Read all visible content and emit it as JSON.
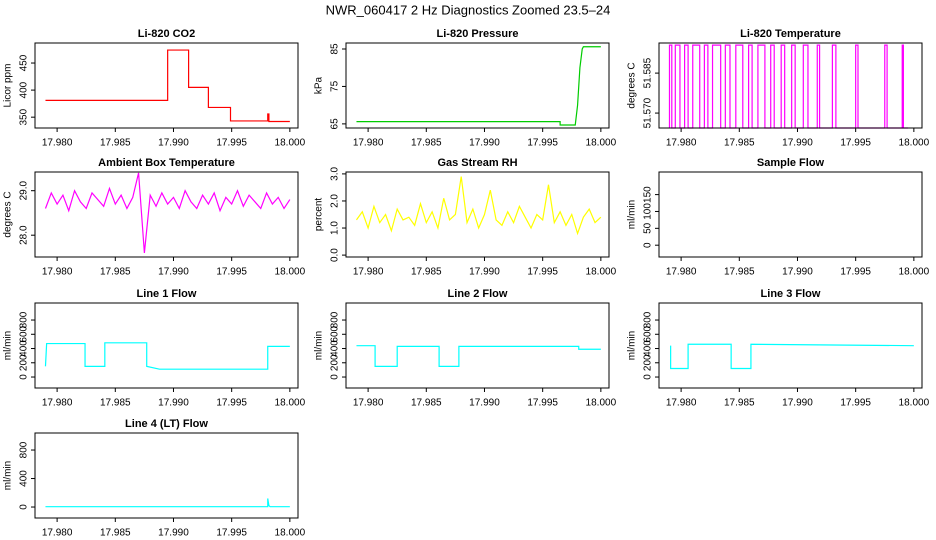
{
  "title": "NWR_060417  2 Hz Diagnostics Zoomed 23.5–24",
  "chart_data": [
    {
      "type": "line",
      "title": "Li-820 CO2",
      "ylabel": "Licor ppm",
      "color": "#ff0000",
      "xlim": [
        17.9781,
        18.0007
      ],
      "xticks": [
        {
          "value": 17.98,
          "label": "17.980"
        },
        {
          "value": 17.985,
          "label": "17.985"
        },
        {
          "value": 17.99,
          "label": "17.990"
        },
        {
          "value": 17.995,
          "label": "17.995"
        },
        {
          "value": 18.0,
          "label": "18.000"
        }
      ],
      "ylim": [
        330,
        487
      ],
      "yticks": [
        350,
        400,
        450
      ],
      "x": [
        17.979,
        17.9895,
        17.9895,
        17.9913,
        17.9913,
        17.993,
        17.993,
        17.9949,
        17.9949,
        17.9981,
        17.9981,
        17.9982,
        17.9982,
        18.0
      ],
      "values": [
        381,
        381,
        474,
        474,
        405,
        405,
        368,
        368,
        343,
        343,
        356,
        356,
        342,
        342
      ]
    },
    {
      "type": "line",
      "title": "Li-820 Pressure",
      "ylabel": "kPa",
      "color": "#00cc00",
      "xlim": [
        17.9781,
        18.0007
      ],
      "xticks": [
        {
          "value": 17.98,
          "label": "17.980"
        },
        {
          "value": 17.985,
          "label": "17.985"
        },
        {
          "value": 17.99,
          "label": "17.990"
        },
        {
          "value": 17.995,
          "label": "17.995"
        },
        {
          "value": 18.0,
          "label": "18.000"
        }
      ],
      "ylim": [
        63.9,
        86.6
      ],
      "yticks": [
        65,
        75,
        85
      ],
      "x": [
        17.979,
        17.9965,
        17.9965,
        17.9978,
        17.998,
        17.9982,
        17.9984,
        17.9985,
        18.0
      ],
      "values": [
        65.6,
        65.6,
        64.7,
        64.7,
        70,
        80,
        85,
        85.6,
        85.6
      ]
    },
    {
      "type": "line",
      "title": "Li-820 Temperature",
      "ylabel": "degrees C",
      "color": "#ff00ff",
      "xlim": [
        17.9781,
        18.0007
      ],
      "xticks": [
        {
          "value": 17.98,
          "label": "17.980"
        },
        {
          "value": 17.985,
          "label": "17.985"
        },
        {
          "value": 17.99,
          "label": "17.990"
        },
        {
          "value": 17.995,
          "label": "17.995"
        },
        {
          "value": 18.0,
          "label": "18.000"
        }
      ],
      "ylim": [
        51.5644,
        51.5963
      ],
      "yticks": [
        {
          "value": 51.57,
          "label": "51.570"
        },
        {
          "value": 51.585,
          "label": "51.585"
        }
      ],
      "x": [
        17.979,
        17.979,
        17.9792,
        17.9792,
        17.9795,
        17.9795,
        17.9799,
        17.9799,
        17.9803,
        17.9803,
        17.9806,
        17.9806,
        17.981,
        17.981,
        17.9816,
        17.9816,
        17.982,
        17.982,
        17.9823,
        17.9823,
        17.9827,
        17.9827,
        17.9834,
        17.9834,
        17.9838,
        17.9838,
        17.9842,
        17.9842,
        17.9847,
        17.9847,
        17.9853,
        17.9853,
        17.9858,
        17.9858,
        17.9861,
        17.9861,
        17.9866,
        17.9866,
        17.9872,
        17.9872,
        17.9877,
        17.9877,
        17.988,
        17.988,
        17.9886,
        17.9886,
        17.9889,
        17.9889,
        17.9895,
        17.9895,
        17.9898,
        17.9898,
        17.9905,
        17.9905,
        17.9909,
        17.9909,
        17.9917,
        17.9917,
        17.9919,
        17.9919,
        17.993,
        17.993,
        17.9933,
        17.9933,
        17.995,
        17.995,
        17.9952,
        17.9952,
        17.9975,
        17.9975,
        17.9977,
        17.9977,
        17.999,
        17.999,
        17.9991,
        17.9991,
        17.9995
      ],
      "values": [
        51.5644,
        51.5955,
        51.5955,
        51.5644,
        51.5644,
        51.5955,
        51.5955,
        51.5644,
        51.5644,
        51.5955,
        51.5955,
        51.5644,
        51.5644,
        51.5955,
        51.5955,
        51.5644,
        51.5644,
        51.5955,
        51.5955,
        51.5644,
        51.5644,
        51.5955,
        51.5955,
        51.5644,
        51.5644,
        51.5955,
        51.5955,
        51.5644,
        51.5644,
        51.5955,
        51.5955,
        51.5644,
        51.5644,
        51.5955,
        51.5955,
        51.5644,
        51.5644,
        51.5955,
        51.5955,
        51.5644,
        51.5644,
        51.5955,
        51.5955,
        51.5644,
        51.5644,
        51.5955,
        51.5955,
        51.5644,
        51.5644,
        51.5955,
        51.5955,
        51.5644,
        51.5644,
        51.5955,
        51.5955,
        51.5644,
        51.5644,
        51.5955,
        51.5955,
        51.5644,
        51.5644,
        51.5955,
        51.5955,
        51.5644,
        51.5644,
        51.5955,
        51.5955,
        51.5644,
        51.5644,
        51.5955,
        51.5955,
        51.5644,
        51.5644,
        51.5955,
        51.5955,
        51.5644,
        51.5644
      ]
    },
    {
      "type": "line",
      "title": "Ambient Box Temperature",
      "ylabel": "degrees C",
      "color": "#ff00ff",
      "xlim": [
        17.9781,
        18.0007
      ],
      "xticks": [
        {
          "value": 17.98,
          "label": "17.980"
        },
        {
          "value": 17.985,
          "label": "17.985"
        },
        {
          "value": 17.99,
          "label": "17.990"
        },
        {
          "value": 17.995,
          "label": "17.995"
        },
        {
          "value": 18.0,
          "label": "18.000"
        }
      ],
      "ylim": [
        27.51,
        29.42
      ],
      "yticks": [
        {
          "value": 28,
          "label": "28.0"
        },
        {
          "value": 29,
          "label": "29.0"
        }
      ],
      "x": [
        17.979,
        17.9795,
        17.98,
        17.9805,
        17.981,
        17.9815,
        17.982,
        17.9825,
        17.983,
        17.9835,
        17.984,
        17.9845,
        17.985,
        17.9855,
        17.986,
        17.9865,
        17.987,
        17.9875,
        17.988,
        17.9885,
        17.989,
        17.9895,
        17.99,
        17.9905,
        17.991,
        17.9915,
        17.992,
        17.9925,
        17.993,
        17.9935,
        17.994,
        17.9945,
        17.995,
        17.9955,
        17.996,
        17.9965,
        17.997,
        17.9975,
        17.998,
        17.9985,
        17.999,
        17.9995,
        18.0
      ],
      "values": [
        28.6,
        28.95,
        28.7,
        28.9,
        28.55,
        29.0,
        28.75,
        28.6,
        28.95,
        28.8,
        28.65,
        29.05,
        28.7,
        28.9,
        28.6,
        28.85,
        29.4,
        27.6,
        28.9,
        28.65,
        28.95,
        28.7,
        28.85,
        28.6,
        29.0,
        28.75,
        28.6,
        28.9,
        28.7,
        28.95,
        28.55,
        28.85,
        28.7,
        29.0,
        28.65,
        28.9,
        28.75,
        28.6,
        28.95,
        28.7,
        28.85,
        28.6,
        28.8
      ]
    },
    {
      "type": "line",
      "title": "Gas Stream RH",
      "ylabel": "percent",
      "color": "#ffff00",
      "xlim": [
        17.9781,
        18.0007
      ],
      "xticks": [
        {
          "value": 17.98,
          "label": "17.980"
        },
        {
          "value": 17.985,
          "label": "17.985"
        },
        {
          "value": 17.99,
          "label": "17.990"
        },
        {
          "value": 17.995,
          "label": "17.995"
        },
        {
          "value": 18.0,
          "label": "18.000"
        }
      ],
      "ylim": [
        -0.07,
        3.07
      ],
      "yticks": [
        {
          "value": 0,
          "label": "0.0"
        },
        {
          "value": 1,
          "label": "1.0"
        },
        {
          "value": 2,
          "label": "2.0"
        },
        {
          "value": 3,
          "label": "3.0"
        }
      ],
      "x": [
        17.979,
        17.9795,
        17.98,
        17.9805,
        17.981,
        17.9815,
        17.982,
        17.9825,
        17.983,
        17.9835,
        17.984,
        17.9845,
        17.985,
        17.9855,
        17.986,
        17.9865,
        17.987,
        17.9875,
        17.988,
        17.9885,
        17.989,
        17.9895,
        17.99,
        17.9905,
        17.991,
        17.9915,
        17.992,
        17.9925,
        17.993,
        17.9935,
        17.994,
        17.9945,
        17.995,
        17.9955,
        17.996,
        17.9965,
        17.997,
        17.9975,
        17.998,
        17.9985,
        17.999,
        17.9995,
        18.0
      ],
      "values": [
        1.3,
        1.6,
        1.0,
        1.8,
        1.2,
        1.5,
        0.9,
        1.7,
        1.3,
        1.4,
        1.1,
        1.9,
        1.2,
        1.6,
        1.0,
        2.1,
        1.3,
        1.5,
        2.9,
        1.2,
        1.7,
        1.0,
        1.5,
        2.4,
        1.3,
        1.1,
        1.6,
        1.2,
        1.8,
        1.4,
        1.0,
        1.5,
        1.3,
        2.6,
        1.2,
        1.6,
        1.1,
        1.5,
        0.8,
        1.4,
        1.7,
        1.2,
        1.4
      ]
    },
    {
      "type": "line",
      "title": "Sample Flow",
      "ylabel": "ml/min",
      "xlim": [
        17.9781,
        18.0007
      ],
      "xticks": [
        {
          "value": 17.98,
          "label": "17.980"
        },
        {
          "value": 17.985,
          "label": "17.985"
        },
        {
          "value": 17.99,
          "label": "17.990"
        },
        {
          "value": 17.995,
          "label": "17.995"
        },
        {
          "value": 18.0,
          "label": "18.000"
        }
      ],
      "ylim": [
        -35,
        217
      ],
      "yticks": [
        0,
        50,
        100,
        150
      ]
    },
    {
      "type": "line",
      "title": "Line 1 Flow",
      "ylabel": "ml/min",
      "color": "#00ffff",
      "xlim": [
        17.9781,
        18.0007
      ],
      "xticks": [
        {
          "value": 17.98,
          "label": "17.980"
        },
        {
          "value": 17.985,
          "label": "17.985"
        },
        {
          "value": 17.99,
          "label": "17.990"
        },
        {
          "value": 17.995,
          "label": "17.995"
        },
        {
          "value": 18.0,
          "label": "18.000"
        }
      ],
      "ylim": [
        -154,
        1039
      ],
      "yticks": [
        0,
        200,
        400,
        600,
        800
      ],
      "x": [
        17.979,
        17.9791,
        17.9824,
        17.9824,
        17.9841,
        17.9841,
        17.9877,
        17.9877,
        17.9888,
        17.9981,
        17.9981,
        18.0
      ],
      "values": [
        150,
        470,
        470,
        150,
        150,
        480,
        480,
        150,
        110,
        110,
        430,
        430
      ]
    },
    {
      "type": "line",
      "title": "Line 2 Flow",
      "ylabel": "ml/min",
      "color": "#00ffff",
      "xlim": [
        17.9781,
        18.0007
      ],
      "xticks": [
        {
          "value": 17.98,
          "label": "17.980"
        },
        {
          "value": 17.985,
          "label": "17.985"
        },
        {
          "value": 17.99,
          "label": "17.990"
        },
        {
          "value": 17.995,
          "label": "17.995"
        },
        {
          "value": 18.0,
          "label": "18.000"
        }
      ],
      "ylim": [
        -154,
        1039
      ],
      "yticks": [
        0,
        200,
        400,
        600,
        800
      ],
      "x": [
        17.979,
        17.9806,
        17.9806,
        17.9825,
        17.9825,
        17.9861,
        17.9861,
        17.9878,
        17.9878,
        17.9981,
        17.9981,
        18.0
      ],
      "values": [
        440,
        440,
        150,
        150,
        430,
        430,
        150,
        150,
        430,
        430,
        390,
        390
      ]
    },
    {
      "type": "line",
      "title": "Line 3 Flow",
      "ylabel": "ml/min",
      "color": "#00ffff",
      "xlim": [
        17.9781,
        18.0007
      ],
      "xticks": [
        {
          "value": 17.98,
          "label": "17.980"
        },
        {
          "value": 17.985,
          "label": "17.985"
        },
        {
          "value": 17.99,
          "label": "17.990"
        },
        {
          "value": 17.995,
          "label": "17.995"
        },
        {
          "value": 18.0,
          "label": "18.000"
        }
      ],
      "ylim": [
        -154,
        1039
      ],
      "yticks": [
        0,
        200,
        400,
        600,
        800
      ],
      "x": [
        17.9791,
        17.9791,
        17.9806,
        17.9806,
        17.9843,
        17.9843,
        17.986,
        17.986,
        18.0
      ],
      "values": [
        440,
        120,
        120,
        460,
        460,
        120,
        120,
        460,
        440
      ]
    },
    {
      "type": "line",
      "title": "Line 4 (LT) Flow",
      "ylabel": "ml/min",
      "color": "#00ffff",
      "xlim": [
        17.9781,
        18.0007
      ],
      "xticks": [
        {
          "value": 17.98,
          "label": "17.980"
        },
        {
          "value": 17.985,
          "label": "17.985"
        },
        {
          "value": 17.99,
          "label": "17.990"
        },
        {
          "value": 17.995,
          "label": "17.995"
        },
        {
          "value": 18.0,
          "label": "18.000"
        }
      ],
      "ylim": [
        -154,
        1039
      ],
      "yticks": [
        0,
        400,
        800
      ],
      "x": [
        17.979,
        17.9981,
        17.9981,
        17.9982,
        17.9983,
        18.0
      ],
      "values": [
        5,
        5,
        120,
        20,
        5,
        5
      ]
    }
  ]
}
